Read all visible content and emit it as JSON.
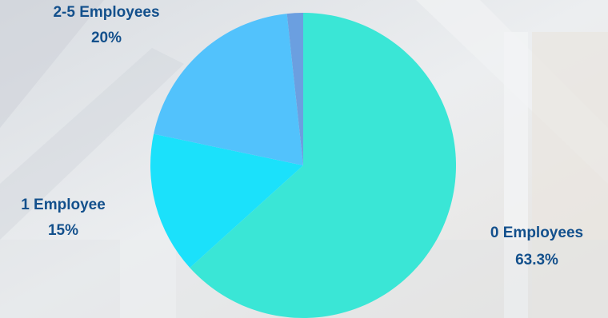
{
  "chart_data": {
    "type": "pie",
    "title": "",
    "legend": "none",
    "slices": [
      {
        "label": "0 Employees",
        "percent_label": "63.3%",
        "value": 63.3,
        "color": "#3ae6d6"
      },
      {
        "label": "1 Employee",
        "percent_label": "15%",
        "value": 15,
        "color": "#1be1fb"
      },
      {
        "label": "2-5 Employees",
        "percent_label": "20%",
        "value": 20,
        "color": "#52c2fc"
      },
      {
        "label": "",
        "percent_label": "",
        "value": 1.7,
        "color": "#6b9fe0"
      }
    ],
    "label_color": "#13508c"
  }
}
